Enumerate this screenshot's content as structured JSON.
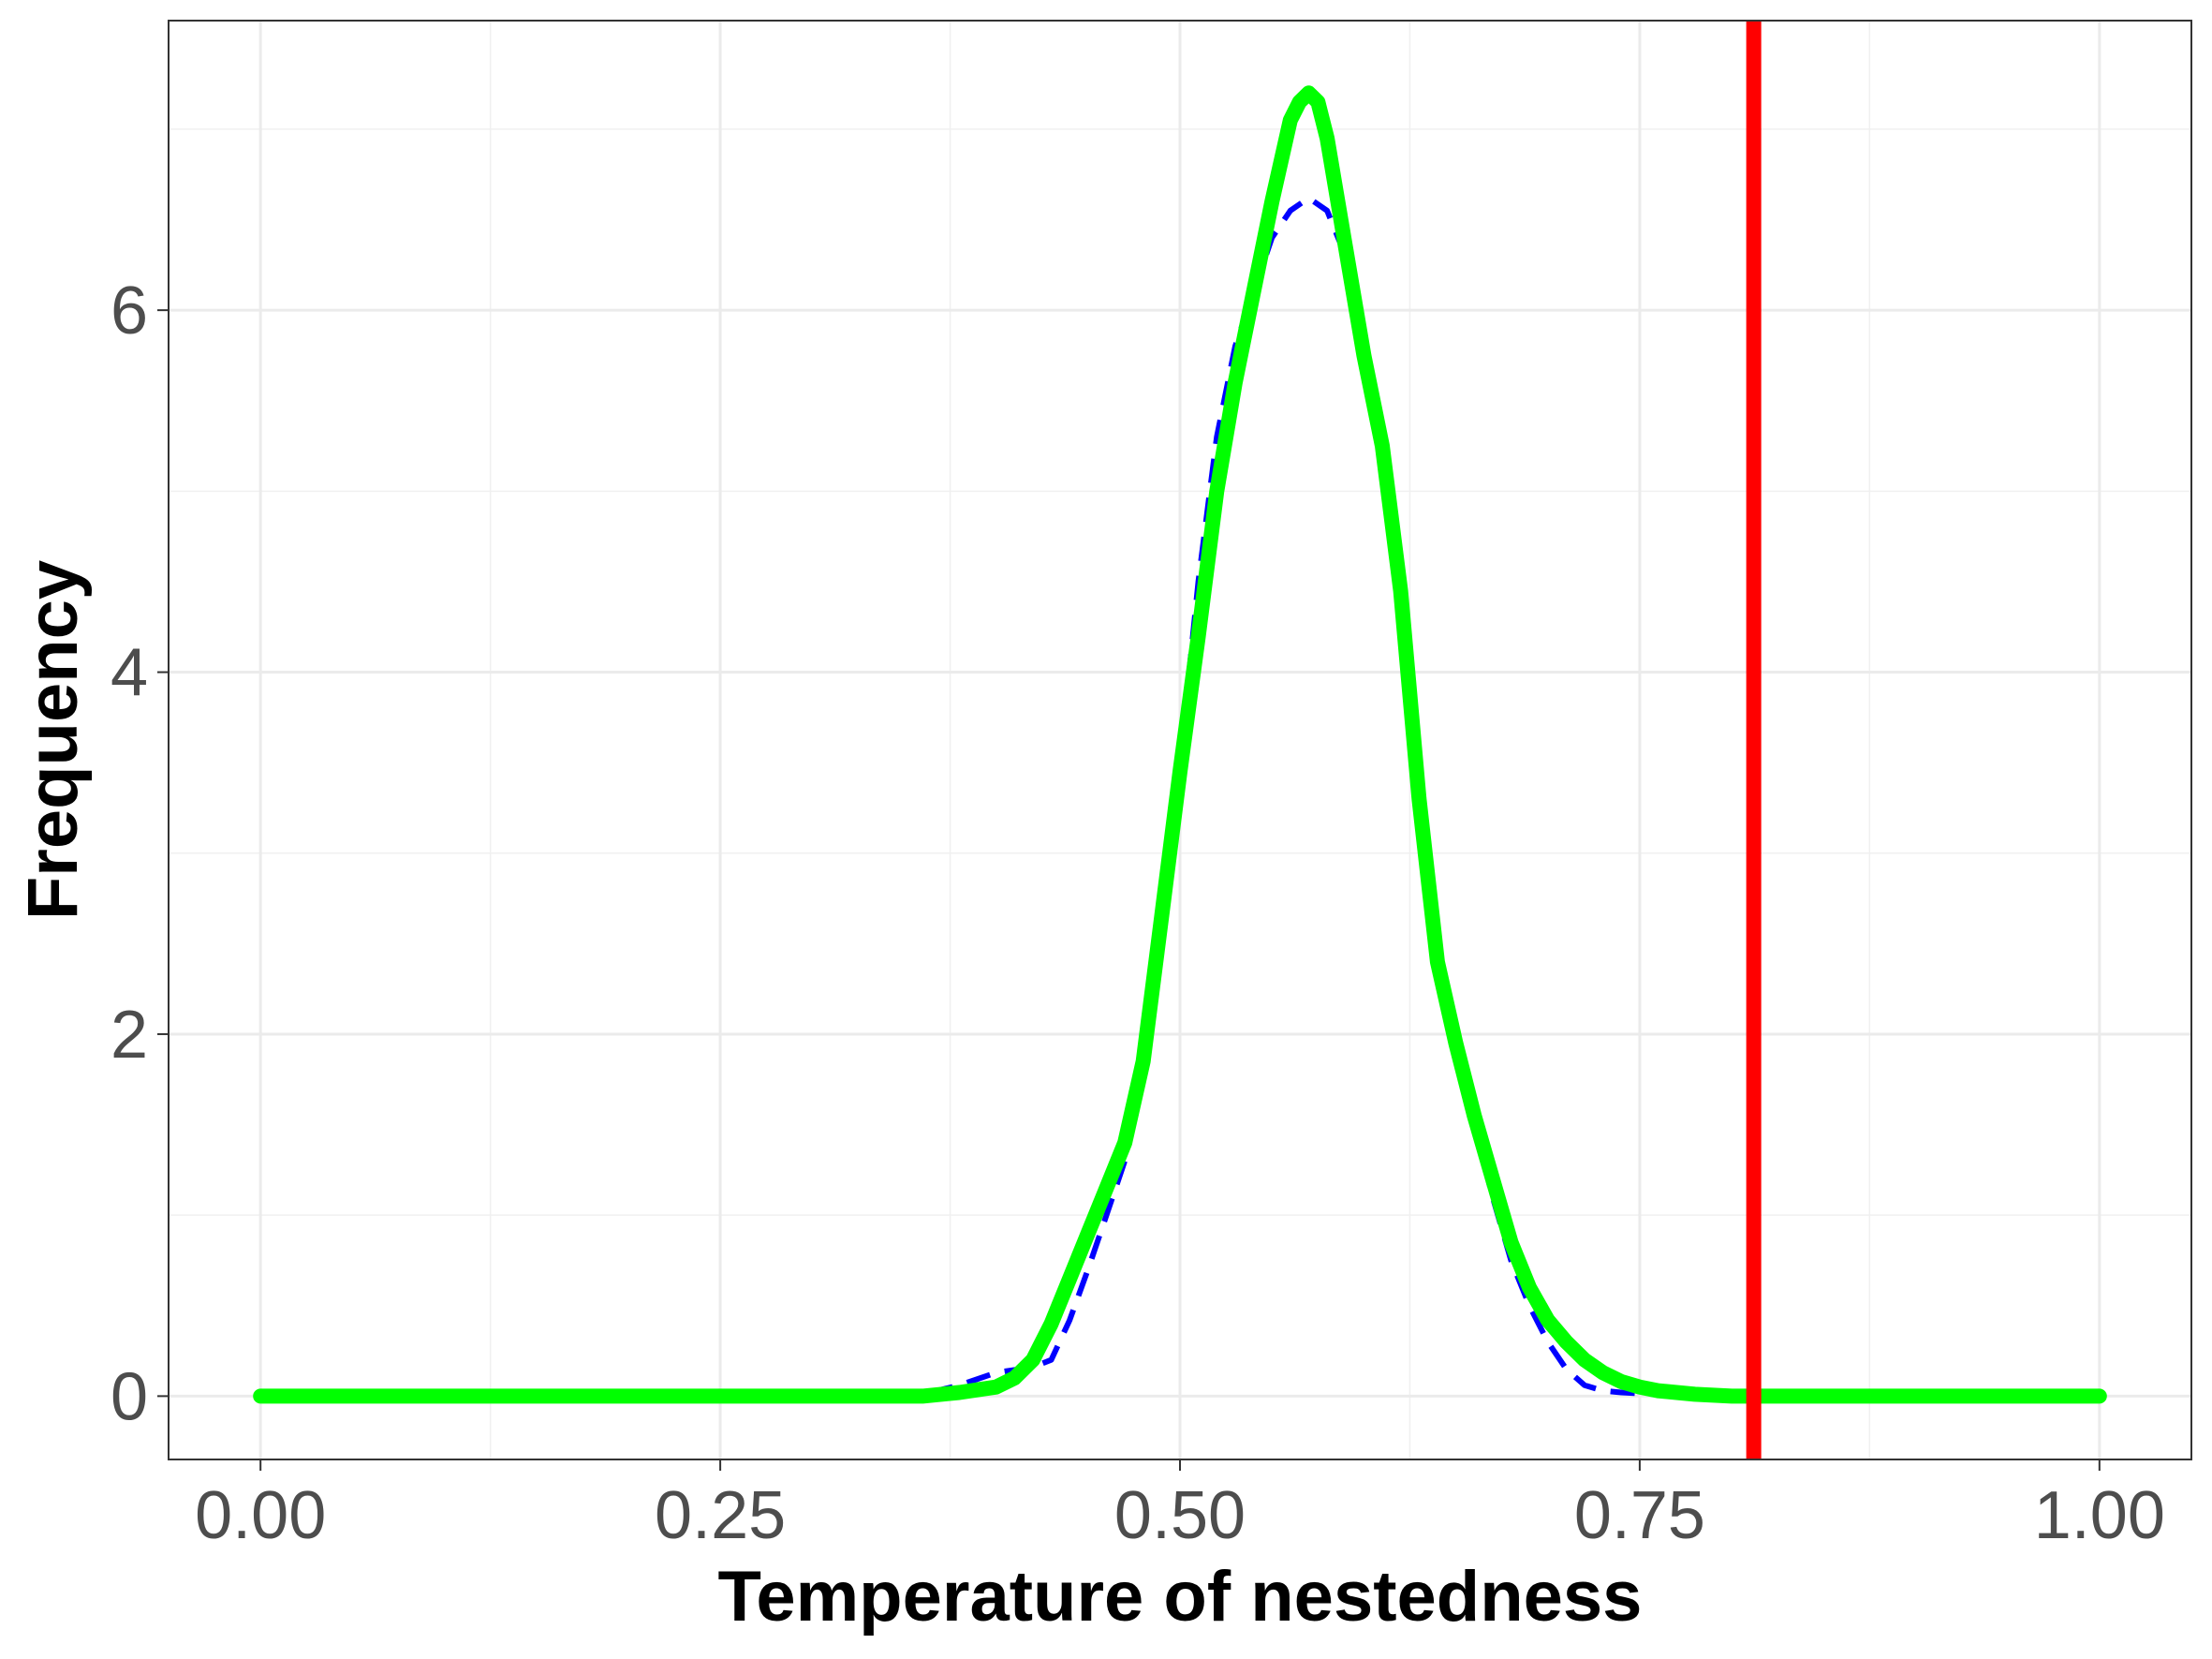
{
  "chart_data": {
    "type": "line",
    "title": "",
    "xlabel": "Temperature of nestedness",
    "ylabel": "Frequency",
    "xlim": [
      -0.05,
      1.05
    ],
    "ylim": [
      -0.35,
      7.6
    ],
    "x_ticks": [
      0.0,
      0.25,
      0.5,
      0.75,
      1.0
    ],
    "x_tick_labels": [
      "0.00",
      "0.25",
      "0.50",
      "0.75",
      "1.00"
    ],
    "y_ticks": [
      0,
      2,
      4,
      6
    ],
    "y_tick_labels": [
      "0",
      "2",
      "4",
      "6"
    ],
    "grid": true,
    "legend": "none",
    "series": [
      {
        "style": "dashed",
        "color": "#0000FF",
        "x": [
          0.0,
          0.2,
          0.3,
          0.36,
          0.38,
          0.4,
          0.42,
          0.43,
          0.44,
          0.45,
          0.46,
          0.47,
          0.48,
          0.49,
          0.5,
          0.51,
          0.52,
          0.53,
          0.54,
          0.55,
          0.56,
          0.57,
          0.58,
          0.59,
          0.6,
          0.61,
          0.62,
          0.63,
          0.64,
          0.65,
          0.66,
          0.67,
          0.68,
          0.69,
          0.7,
          0.71,
          0.72,
          0.73,
          0.74,
          0.76,
          0.78,
          0.8,
          0.9,
          1.0
        ],
        "y": [
          0,
          0,
          0,
          0.01,
          0.06,
          0.13,
          0.16,
          0.2,
          0.42,
          0.7,
          1.0,
          1.3,
          1.95,
          2.7,
          3.5,
          4.5,
          5.3,
          5.8,
          6.1,
          6.4,
          6.55,
          6.62,
          6.55,
          6.3,
          5.85,
          5.35,
          4.5,
          3.2,
          2.4,
          1.9,
          1.5,
          1.1,
          0.75,
          0.5,
          0.3,
          0.15,
          0.06,
          0.03,
          0.02,
          0.01,
          0.0,
          0,
          0,
          0
        ]
      },
      {
        "style": "solid",
        "color": "#00FF00",
        "x": [
          0.0,
          0.2,
          0.3,
          0.36,
          0.38,
          0.4,
          0.41,
          0.42,
          0.43,
          0.44,
          0.45,
          0.46,
          0.47,
          0.48,
          0.49,
          0.5,
          0.51,
          0.52,
          0.53,
          0.54,
          0.55,
          0.56,
          0.565,
          0.57,
          0.575,
          0.58,
          0.59,
          0.6,
          0.61,
          0.62,
          0.63,
          0.64,
          0.65,
          0.66,
          0.67,
          0.68,
          0.69,
          0.7,
          0.71,
          0.72,
          0.73,
          0.74,
          0.75,
          0.76,
          0.77,
          0.78,
          0.8,
          0.9,
          1.0
        ],
        "y": [
          0,
          0,
          0,
          0.0,
          0.02,
          0.05,
          0.1,
          0.2,
          0.4,
          0.65,
          0.9,
          1.15,
          1.4,
          1.85,
          2.65,
          3.45,
          4.2,
          5.0,
          5.6,
          6.1,
          6.6,
          7.05,
          7.15,
          7.2,
          7.15,
          6.95,
          6.35,
          5.75,
          5.25,
          4.45,
          3.3,
          2.4,
          1.95,
          1.55,
          1.2,
          0.85,
          0.6,
          0.42,
          0.3,
          0.2,
          0.13,
          0.08,
          0.05,
          0.03,
          0.02,
          0.01,
          0.0,
          0,
          0
        ]
      }
    ],
    "reference_lines": [
      {
        "orientation": "vertical",
        "x": 0.812,
        "color": "#FF0000"
      }
    ]
  }
}
